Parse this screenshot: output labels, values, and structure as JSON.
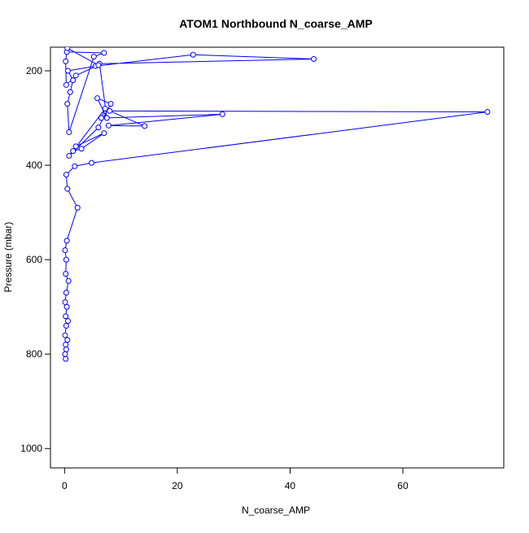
{
  "chart_data": {
    "type": "line",
    "title": "ATOM1 Northbound N_coarse_AMP",
    "x_label": "N_coarse_AMP",
    "y_label": "Pressure (mbar)",
    "x": [
      0.2,
      0.1,
      0.3,
      0.2,
      0.5,
      0.1,
      0.3,
      0.6,
      0.2,
      0.4,
      0.1,
      0.3,
      0.7,
      0.2,
      0.3,
      0.1,
      0.4,
      2.3,
      0.5,
      0.3,
      1.8,
      4.8,
      75,
      8,
      14.2,
      7.8,
      28,
      6.5,
      7.2,
      1.5,
      3,
      7,
      2,
      0.8,
      6,
      8.2,
      5.8,
      7.5,
      6.2,
      44.2,
      22.8,
      5.5,
      0.6,
      1.5,
      1,
      0.5,
      0.8,
      5.2,
      7,
      0.4,
      0.2,
      0.3,
      2,
      6,
      0.5
    ],
    "series": [
      {
        "name": "Pressure",
        "color": "#0000ff",
        "values": [
          810,
          800,
          790,
          780,
          770,
          760,
          740,
          730,
          720,
          700,
          690,
          670,
          645,
          630,
          600,
          580,
          560,
          490,
          450,
          420,
          402,
          395,
          287,
          285,
          317,
          316,
          292,
          300,
          280,
          370,
          365,
          332,
          360,
          380,
          320,
          270,
          258,
          300,
          185,
          175,
          166,
          190,
          200,
          220,
          245,
          270,
          330,
          170,
          162,
          160,
          180,
          230,
          210,
          188,
          152
        ]
      }
    ],
    "xlim": [
      -2.5,
      77.9
    ],
    "ylim": [
      1041,
      150
    ],
    "xticks": [
      0,
      20,
      40,
      60
    ],
    "yticks": [
      200,
      400,
      600,
      800,
      1000
    ]
  }
}
